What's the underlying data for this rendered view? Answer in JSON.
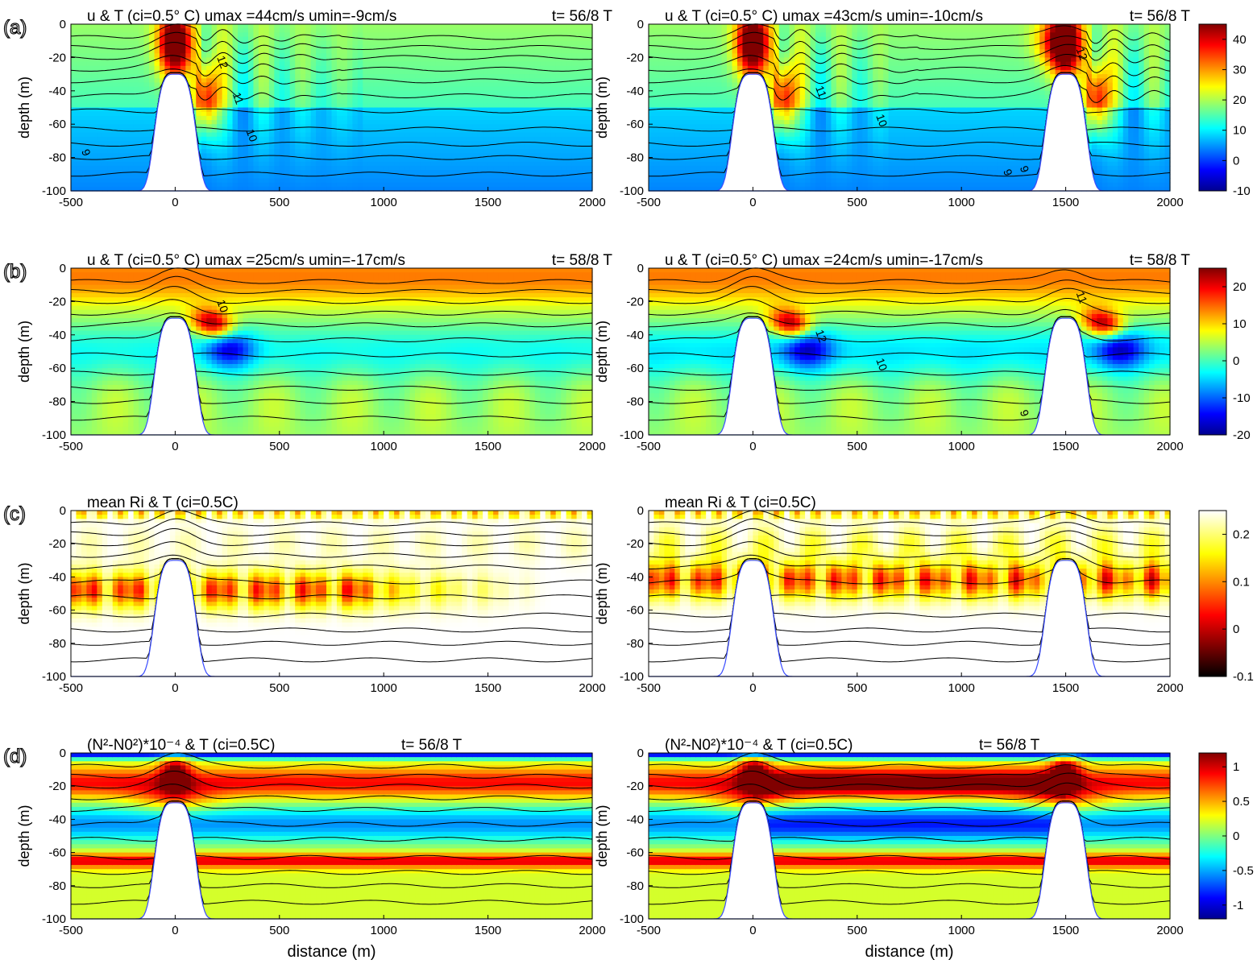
{
  "figure": {
    "x_label": "distance (m)",
    "y_label": "depth (m)",
    "x_ticks": [
      "-500",
      "0",
      "500",
      "1000",
      "1500",
      "2000"
    ],
    "y_ticks": [
      "0",
      "-20",
      "-40",
      "-60",
      "-80",
      "-100"
    ]
  },
  "chart_data": [
    {
      "type": "heatmap",
      "row": "(a)",
      "column": "left",
      "title": "u & T (ci=0.5° C)  umax =44cm/s   umin=-9cm/s",
      "time": "t= 56/8 T",
      "field": "u",
      "field_units": "cm/s",
      "field_range": [
        -9,
        44
      ],
      "xlim": [
        -500,
        2000
      ],
      "ylim": [
        -100,
        0
      ],
      "ridge_centers": [
        0
      ],
      "ridge_crest_depth": -30,
      "contour_labels": [
        "12",
        "11",
        "10",
        "9"
      ],
      "colormap": "jet",
      "clim": [
        -10,
        45
      ]
    },
    {
      "type": "heatmap",
      "row": "(a)",
      "column": "right",
      "title": "u & T (ci=0.5° C)  umax =43cm/s   umin=-10cm/s",
      "time": "t= 56/8 T",
      "field": "u",
      "field_units": "cm/s",
      "field_range": [
        -10,
        43
      ],
      "xlim": [
        -500,
        2000
      ],
      "ylim": [
        -100,
        0
      ],
      "ridge_centers": [
        0,
        1500
      ],
      "ridge_crest_depth": -30,
      "contour_labels": [
        "12",
        "11",
        "10",
        "9",
        "9"
      ],
      "colormap": "jet",
      "clim": [
        -10,
        45
      ]
    },
    {
      "type": "heatmap",
      "row": "(b)",
      "column": "left",
      "title": "u & T (ci=0.5° C)  umax =25cm/s   umin=-17cm/s",
      "time": "t= 58/8 T",
      "field": "u",
      "field_units": "cm/s",
      "field_range": [
        -17,
        25
      ],
      "xlim": [
        -500,
        2000
      ],
      "ylim": [
        -100,
        0
      ],
      "ridge_centers": [
        0
      ],
      "ridge_crest_depth": -30,
      "contour_labels": [
        "10"
      ],
      "colormap": "jet",
      "clim": [
        -20,
        25
      ]
    },
    {
      "type": "heatmap",
      "row": "(b)",
      "column": "right",
      "title": "u & T (ci=0.5° C)  umax =24cm/s   umin=-17cm/s",
      "time": "t= 58/8 T",
      "field": "u",
      "field_units": "cm/s",
      "field_range": [
        -17,
        24
      ],
      "xlim": [
        -500,
        2000
      ],
      "ylim": [
        -100,
        0
      ],
      "ridge_centers": [
        0,
        1500
      ],
      "ridge_crest_depth": -30,
      "contour_labels": [
        "11",
        "12",
        "10",
        "9"
      ],
      "colormap": "jet",
      "clim": [
        -20,
        25
      ]
    },
    {
      "type": "heatmap",
      "row": "(c)",
      "column": "left",
      "title": "mean Ri & T (ci=0.5C)",
      "field": "mean Ri",
      "xlim": [
        -500,
        2000
      ],
      "ylim": [
        -100,
        0
      ],
      "ridge_centers": [
        0
      ],
      "ridge_crest_depth": -30,
      "low_Ri_band_depth": [
        -40,
        -60
      ],
      "colormap": "hot",
      "clim": [
        -0.1,
        0.25
      ]
    },
    {
      "type": "heatmap",
      "row": "(c)",
      "column": "right",
      "title": "mean Ri & T (ci=0.5C)",
      "field": "mean Ri",
      "xlim": [
        -500,
        2000
      ],
      "ylim": [
        -100,
        0
      ],
      "ridge_centers": [
        0,
        1500
      ],
      "ridge_crest_depth": -30,
      "low_Ri_band_depth": [
        -35,
        -55
      ],
      "colormap": "hot",
      "clim": [
        -0.1,
        0.25
      ]
    },
    {
      "type": "heatmap",
      "row": "(d)",
      "column": "left",
      "title": "(N²-N0²)*10⁻⁴ & T (ci=0.5C)",
      "time": "t= 56/8 T",
      "field": "(N²-N0²)*10⁻⁴",
      "xlim": [
        -500,
        2000
      ],
      "ylim": [
        -100,
        0
      ],
      "ridge_centers": [
        0
      ],
      "ridge_crest_depth": -30,
      "colormap": "jet",
      "clim": [
        -1.2,
        1.2
      ]
    },
    {
      "type": "heatmap",
      "row": "(d)",
      "column": "right",
      "title": "(N²-N0²)*10⁻⁴ & T (ci=0.5C)",
      "time": "t= 56/8 T",
      "field": "(N²-N0²)*10⁻⁴",
      "xlim": [
        -500,
        2000
      ],
      "ylim": [
        -100,
        0
      ],
      "ridge_centers": [
        0,
        1500
      ],
      "ridge_crest_depth": -30,
      "colormap": "jet",
      "clim": [
        -1.2,
        1.2
      ]
    }
  ],
  "colorbars": [
    {
      "row": "(a)",
      "colormap": "jet",
      "range": [
        -10,
        45
      ],
      "ticks": [
        "40",
        "30",
        "20",
        "10",
        "0",
        "-10"
      ],
      "tick_values": [
        40,
        30,
        20,
        10,
        0,
        -10
      ]
    },
    {
      "row": "(b)",
      "colormap": "jet",
      "range": [
        -20,
        25
      ],
      "ticks": [
        "20",
        "10",
        "0",
        "-10",
        "-20"
      ],
      "tick_values": [
        20,
        10,
        0,
        -10,
        -20
      ]
    },
    {
      "row": "(c)",
      "colormap": "hot",
      "range": [
        -0.1,
        0.25
      ],
      "ticks": [
        "0.2",
        "0.1",
        "0",
        "-0.1"
      ],
      "tick_values": [
        0.2,
        0.1,
        0,
        -0.1
      ]
    },
    {
      "row": "(d)",
      "colormap": "jet",
      "range": [
        -1.2,
        1.2
      ],
      "ticks": [
        "1",
        "0.5",
        "0",
        "-0.5",
        "-1"
      ],
      "tick_values": [
        1,
        0.5,
        0,
        -0.5,
        -1
      ]
    }
  ],
  "row_labels": [
    "(a)",
    "(b)",
    "(c)",
    "(d)"
  ]
}
